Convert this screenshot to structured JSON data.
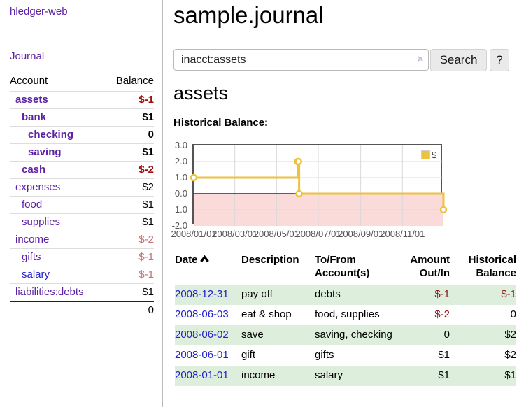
{
  "sidebar": {
    "app_title": "hledger-web",
    "nav": {
      "journal": "Journal"
    },
    "accounts_table": {
      "headers": {
        "account": "Account",
        "balance": "Balance"
      },
      "rows": [
        {
          "label": "assets",
          "balance": "$-1"
        },
        {
          "label": "bank",
          "balance": "$1"
        },
        {
          "label": "checking",
          "balance": "0"
        },
        {
          "label": "saving",
          "balance": "$1"
        },
        {
          "label": "cash",
          "balance": "$-2"
        },
        {
          "label": "expenses",
          "balance": "$2"
        },
        {
          "label": "food",
          "balance": "$1"
        },
        {
          "label": "supplies",
          "balance": "$1"
        },
        {
          "label": "income",
          "balance": "$-2"
        },
        {
          "label": "gifts",
          "balance": "$-1"
        },
        {
          "label": "salary",
          "balance": "$-1"
        },
        {
          "label": "liabilities:debts",
          "balance": "$1"
        }
      ],
      "total": "0"
    }
  },
  "header": {
    "title": "sample.journal",
    "search": {
      "value": "inacct:assets",
      "clear_icon": "×",
      "search_button": "Search",
      "help_button": "?"
    }
  },
  "account_view": {
    "heading": "assets",
    "chart_label": "Historical Balance:"
  },
  "chart_data": {
    "type": "line",
    "step": true,
    "title": "Historical Balance",
    "legend": [
      {
        "label": "$",
        "color": "#edc240"
      }
    ],
    "legend_position": "top-right",
    "points": [
      {
        "date": "2008-01-01",
        "value": 1
      },
      {
        "date": "2008-06-01",
        "value": 2
      },
      {
        "date": "2008-06-02",
        "value": 2
      },
      {
        "date": "2008-06-03",
        "value": 0
      },
      {
        "date": "2008-12-31",
        "value": -1
      }
    ],
    "x_range": [
      "2008-01-01",
      "2008-12-31"
    ],
    "x_ticks": [
      "2008/01/01",
      "2008/03/01",
      "2008/05/01",
      "2008/07/01",
      "2008/09/01",
      "2008/11/01"
    ],
    "y_ticks": [
      3.0,
      2.0,
      1.0,
      0.0,
      -1.0,
      -2.0
    ],
    "ylim": [
      -2,
      3
    ],
    "grid": true,
    "line_color": "#edc240",
    "negative_region_color": "#fbdada",
    "zero_line_color": "#8b0000"
  },
  "register": {
    "headers": [
      "Date",
      "Description",
      "To/From Account(s)",
      "Amount Out/In",
      "Historical Balance"
    ],
    "rows": [
      {
        "date": "2008-12-31",
        "description": "pay off",
        "accounts": "debts",
        "amount": "$-1",
        "balance": "$-1"
      },
      {
        "date": "2008-06-03",
        "description": "eat & shop",
        "accounts": "food, supplies",
        "amount": "$-2",
        "balance": "0"
      },
      {
        "date": "2008-06-02",
        "description": "save",
        "accounts": "saving, checking",
        "amount": "0",
        "balance": "$2"
      },
      {
        "date": "2008-06-01",
        "description": "gift",
        "accounts": "gifts",
        "amount": "$1",
        "balance": "$2"
      },
      {
        "date": "2008-01-01",
        "description": "income",
        "accounts": "salary",
        "amount": "$1",
        "balance": "$1"
      }
    ]
  },
  "colors": {
    "link_purple": "#5c21a5",
    "link_blue": "#2222cc",
    "negative_strong": "#a01010",
    "negative_soft": "#c47272",
    "register_negative": "#8b1515",
    "row_green": "#ddeedd",
    "series_yellow": "#edc240"
  }
}
